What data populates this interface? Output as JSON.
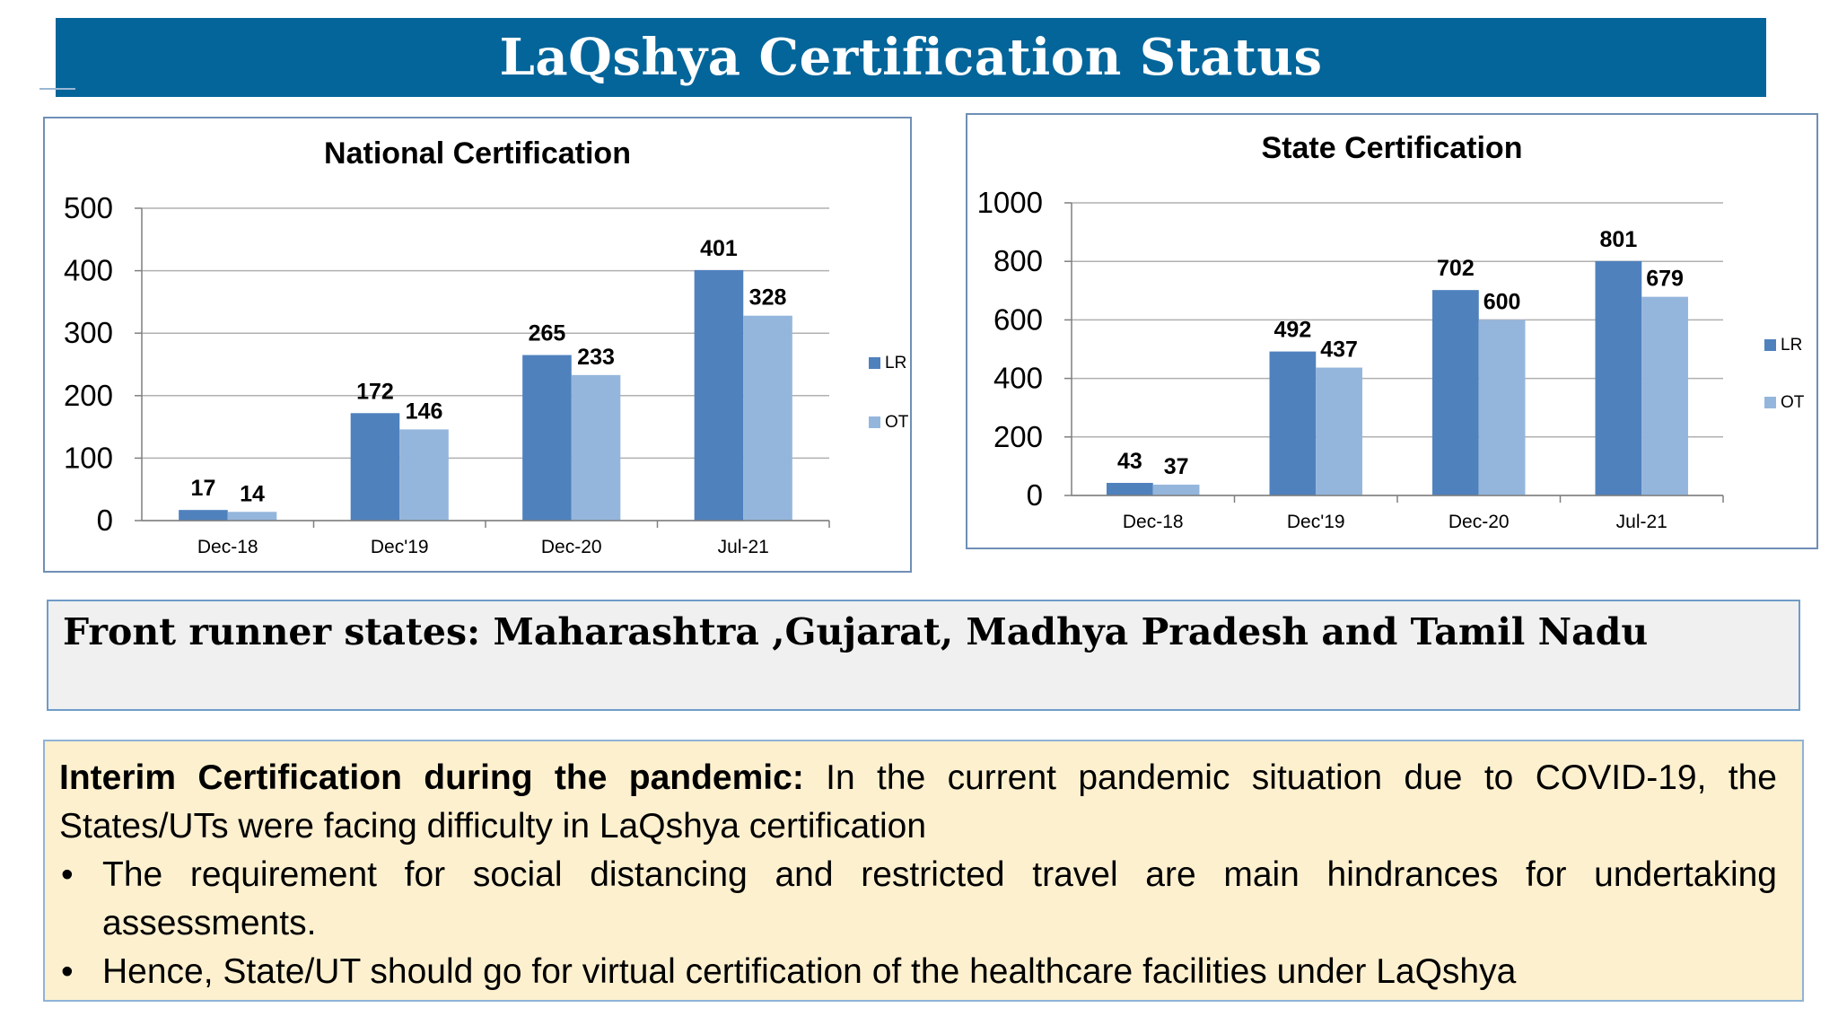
{
  "header": {
    "title": "LaQshya Certification Status"
  },
  "theme": {
    "title_bg": "#03659a",
    "lr_color": "#4f81bd",
    "ot_color": "#95b6dc",
    "grid_color": "#b0b0b0",
    "box_border": "#6f8fb5"
  },
  "chart_data": [
    {
      "type": "bar",
      "title": "National Certification",
      "categories": [
        "Dec-18",
        "Dec'19",
        "Dec-20",
        "Jul-21"
      ],
      "series": [
        {
          "name": "LR",
          "values": [
            17,
            172,
            265,
            401
          ]
        },
        {
          "name": "OT",
          "values": [
            14,
            146,
            233,
            328
          ]
        }
      ],
      "ylim": [
        0,
        500
      ],
      "yticks": [
        0,
        100,
        200,
        300,
        400,
        500
      ],
      "grid": true,
      "legend": "right",
      "xlabel": "",
      "ylabel": ""
    },
    {
      "type": "bar",
      "title": "State Certification",
      "categories": [
        "Dec-18",
        "Dec'19",
        "Dec-20",
        "Jul-21"
      ],
      "series": [
        {
          "name": "LR",
          "values": [
            43,
            492,
            702,
            801
          ]
        },
        {
          "name": "OT",
          "values": [
            37,
            437,
            600,
            679
          ]
        }
      ],
      "ylim": [
        0,
        1000
      ],
      "yticks": [
        0,
        200,
        400,
        600,
        800,
        1000
      ],
      "grid": true,
      "legend": "right",
      "xlabel": "",
      "ylabel": ""
    }
  ],
  "front_runner": {
    "text": "Front runner states: Maharashtra ,Gujarat, Madhya Pradesh and Tamil Nadu"
  },
  "interim": {
    "lead": "Interim Certification during the pandemic:",
    "text": " In the current pandemic situation due to COVID-19, the States/UTs were facing difficulty in LaQshya certification",
    "bullet_symbol": "•",
    "bullets": [
      "The requirement for social distancing and restricted travel are main hindrances for undertaking assessments.",
      "Hence, State/UT should go for virtual certification of the healthcare facilities under LaQshya"
    ]
  }
}
